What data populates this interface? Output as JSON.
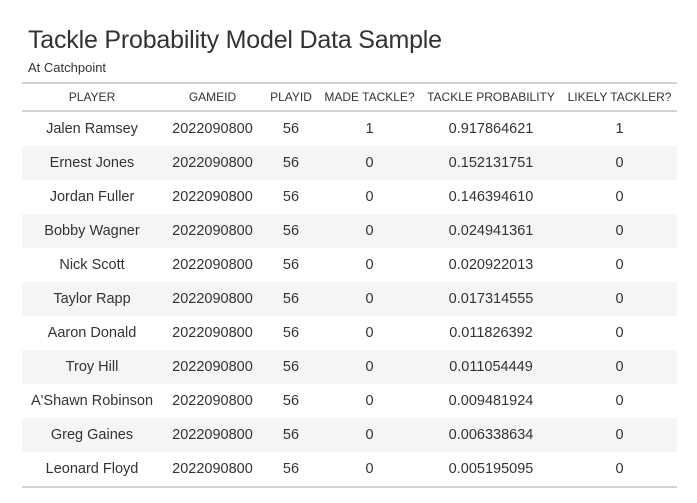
{
  "title": "Tackle Probability Model Data Sample",
  "subtitle": "At Catchpoint",
  "columns": [
    "PLAYER",
    "GAMEID",
    "PLAYID",
    "MADE TACKLE?",
    "TACKLE PROBABILITY",
    "LIKELY TACKLER?"
  ],
  "rows": [
    [
      "Jalen Ramsey",
      "2022090800",
      "56",
      "1",
      "0.917864621",
      "1"
    ],
    [
      "Ernest Jones",
      "2022090800",
      "56",
      "0",
      "0.152131751",
      "0"
    ],
    [
      "Jordan Fuller",
      "2022090800",
      "56",
      "0",
      "0.146394610",
      "0"
    ],
    [
      "Bobby Wagner",
      "2022090800",
      "56",
      "0",
      "0.024941361",
      "0"
    ],
    [
      "Nick Scott",
      "2022090800",
      "56",
      "0",
      "0.020922013",
      "0"
    ],
    [
      "Taylor Rapp",
      "2022090800",
      "56",
      "0",
      "0.017314555",
      "0"
    ],
    [
      "Aaron Donald",
      "2022090800",
      "56",
      "0",
      "0.011826392",
      "0"
    ],
    [
      "Troy Hill",
      "2022090800",
      "56",
      "0",
      "0.011054449",
      "0"
    ],
    [
      "A'Shawn Robinson",
      "2022090800",
      "56",
      "0",
      "0.009481924",
      "0"
    ],
    [
      "Greg Gaines",
      "2022090800",
      "56",
      "0",
      "0.006338634",
      "0"
    ],
    [
      "Leonard Floyd",
      "2022090800",
      "56",
      "0",
      "0.005195095",
      "0"
    ]
  ]
}
